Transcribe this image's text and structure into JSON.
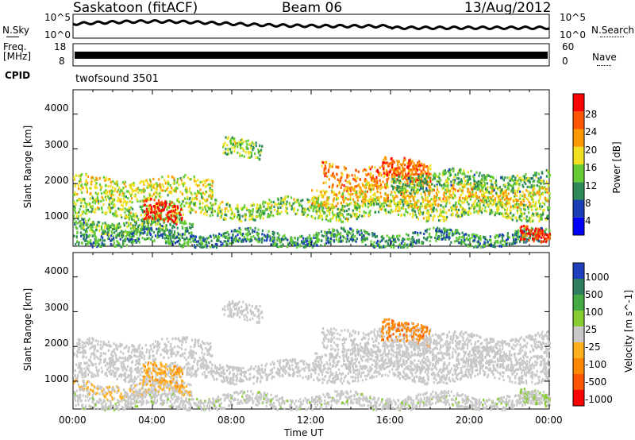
{
  "header": {
    "title": "Saskatoon (fitACF)",
    "beam": "Beam 06",
    "date": "13/Aug/2012"
  },
  "noise_panel": {
    "left_label": "N.Sky",
    "right_label": "N.Search",
    "left_ticks": [
      "10^5",
      "10^0"
    ],
    "right_ticks": [
      "10^5",
      "10^0"
    ]
  },
  "freq_panel": {
    "left_label_1": "Freq.",
    "left_label_2": "[MHz]",
    "left_ticks": [
      "18",
      "8"
    ],
    "right_label": "Nave",
    "right_ticks": [
      "60",
      "0"
    ]
  },
  "cpid": {
    "label": "CPID",
    "program": "twofsound 3501"
  },
  "power_panel": {
    "ylabel": "Slant Range [km]",
    "yticks": [
      "4000",
      "3000",
      "2000",
      "1000"
    ],
    "colorbar_label": "Power [dB]",
    "colorbar_ticks": [
      "28",
      "24",
      "20",
      "16",
      "12",
      "8",
      "4"
    ],
    "colors": [
      "#0000ff",
      "#1a3fb4",
      "#2e8b57",
      "#66cc33",
      "#f0e020",
      "#ff9900",
      "#ff5500",
      "#ff0000"
    ]
  },
  "velocity_panel": {
    "ylabel": "Slant Range [km]",
    "yticks": [
      "4000",
      "3000",
      "2000",
      "1000"
    ],
    "colorbar_label": "Velocity [m s^-1]",
    "colorbar_ticks": [
      "1000",
      "500",
      "100",
      "25",
      "-25",
      "-100",
      "-500",
      "-1000"
    ],
    "colors": [
      "#1f3fbf",
      "#2f7f5f",
      "#44aa44",
      "#88cc33",
      "#c8c8c8",
      "#ffb020",
      "#ff8800",
      "#ff5500",
      "#ff0000"
    ]
  },
  "xaxis": {
    "label": "Time UT",
    "ticks": [
      "00:00",
      "04:00",
      "08:00",
      "12:00",
      "16:00",
      "20:00",
      "00:00"
    ]
  },
  "chart_data": {
    "type": "heatmap",
    "title": "Saskatoon (fitACF)",
    "xlabel": "Time UT",
    "ylabel": "Slant Range [km]",
    "x_range_hours": [
      0,
      24
    ],
    "y_range_km": [
      200,
      4700
    ],
    "colorbars": [
      {
        "name": "Power [dB]",
        "range": [
          0,
          30
        ]
      },
      {
        "name": "Velocity [m s^-1]",
        "range": [
          -1000,
          1000
        ]
      }
    ],
    "scatter_bands": [
      {
        "start_h": 0,
        "end_h": 24,
        "range_km": 1300,
        "width_km": 250,
        "power": 14,
        "velocity": 0
      },
      {
        "start_h": 0,
        "end_h": 7,
        "range_km": 1900,
        "width_km": 300,
        "power": 16,
        "velocity": 0
      },
      {
        "start_h": 0,
        "end_h": 6,
        "range_km": 800,
        "width_km": 200,
        "power": 12,
        "velocity": -100
      },
      {
        "start_h": 3.5,
        "end_h": 5.5,
        "range_km": 1200,
        "width_km": 300,
        "power": 28,
        "velocity": -300
      },
      {
        "start_h": 7.5,
        "end_h": 9.5,
        "range_km": 3000,
        "width_km": 250,
        "power": 14,
        "velocity": 0
      },
      {
        "start_h": 12.5,
        "end_h": 18,
        "range_km": 2250,
        "width_km": 350,
        "power": 22,
        "velocity": 0
      },
      {
        "start_h": 15.5,
        "end_h": 18,
        "range_km": 2400,
        "width_km": 300,
        "power": 24,
        "velocity": -500
      },
      {
        "start_h": 12,
        "end_h": 24,
        "range_km": 1700,
        "width_km": 250,
        "power": 18,
        "velocity": 0
      },
      {
        "start_h": 16,
        "end_h": 24,
        "range_km": 2100,
        "width_km": 250,
        "power": 12,
        "velocity": 0
      },
      {
        "start_h": 0,
        "end_h": 24,
        "range_km": 450,
        "width_km": 200,
        "power": 10,
        "velocity": 50
      },
      {
        "start_h": 22.5,
        "end_h": 24,
        "range_km": 500,
        "width_km": 200,
        "power": 26,
        "velocity": 100
      }
    ]
  }
}
